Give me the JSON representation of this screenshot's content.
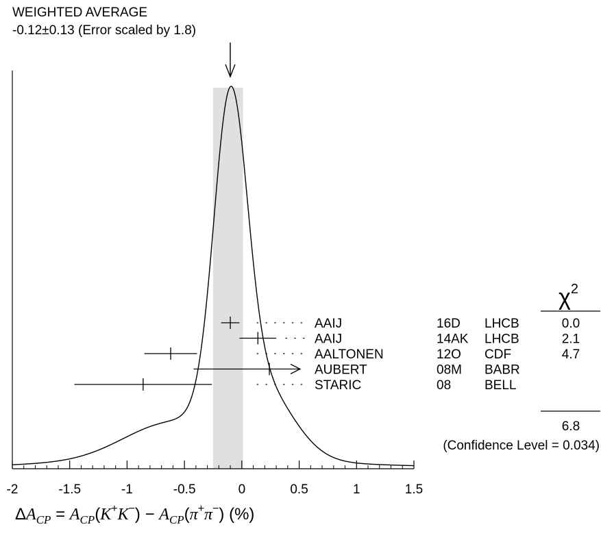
{
  "chart_data": {
    "type": "ideogram",
    "title": "WEIGHTED AVERAGE",
    "subtitle": "-0.12±0.13 (Error scaled by 1.8)",
    "xlabel": "ΔA_CP = A_CP(K+K−) − A_CP(π+π−) (%)",
    "xlim": [
      -2,
      1.5
    ],
    "x_ticks": [
      "-2",
      "-1.5",
      "-1",
      "-0.5",
      "0",
      "0.5",
      "1",
      "1.5"
    ],
    "weighted_average": {
      "value": -0.12,
      "error": 0.13,
      "error_scale": 1.8,
      "band": [
        -0.25,
        0.01
      ]
    },
    "measurements": [
      {
        "author": "AAIJ",
        "ref": "16D",
        "experiment": "LHCB",
        "value": -0.1,
        "error_low": 0.08,
        "error_high": 0.08,
        "chi2": "0.0"
      },
      {
        "author": "AAIJ",
        "ref": "14AK",
        "experiment": "LHCB",
        "value": 0.14,
        "error_low": 0.16,
        "error_high": 0.16,
        "chi2": "2.1"
      },
      {
        "author": "AALTONEN",
        "ref": "12O",
        "experiment": "CDF",
        "value": -0.62,
        "error_low": 0.23,
        "error_high": 0.23,
        "chi2": "4.7"
      },
      {
        "author": "AUBERT",
        "ref": "08M",
        "experiment": "BABR",
        "value": 0.24,
        "error_low": 0.66,
        "error_high": 0.66,
        "chi2": ""
      },
      {
        "author": "STARIC",
        "ref": "08",
        "experiment": "BELL",
        "value": -0.86,
        "error_low": 0.6,
        "error_high": 0.6,
        "chi2": ""
      }
    ],
    "chi2_header": "χ",
    "chi2_header_exp": "2",
    "chi2_total": "6.8",
    "confidence_level": "(Confidence Level = 0.034)"
  }
}
